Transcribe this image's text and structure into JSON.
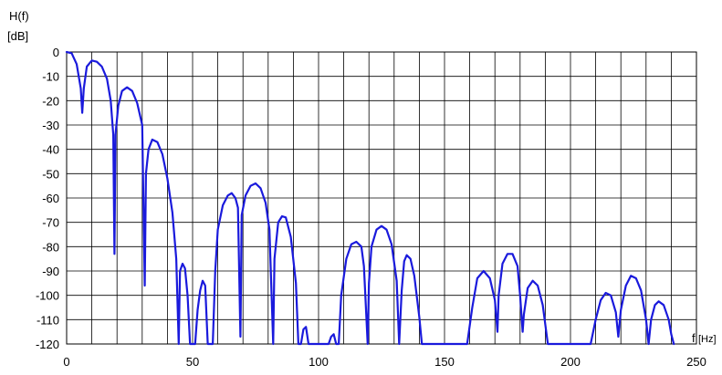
{
  "chart_data": {
    "type": "line",
    "ylabel_line1": "H(f)",
    "ylabel_line2": "[dB]",
    "xlabel_f": "f",
    "xlabel_unit": "[Hz]",
    "xlim": [
      0,
      250
    ],
    "ylim": [
      -120,
      0
    ],
    "xticks": [
      0,
      50,
      100,
      150,
      200,
      250
    ],
    "yticks": [
      0,
      -10,
      -20,
      -30,
      -40,
      -50,
      -60,
      -70,
      -80,
      -90,
      -100,
      -110,
      -120
    ],
    "grid": true,
    "colors": {
      "series": "#1a1adc",
      "grid": "#000000",
      "frame": "#000000"
    },
    "series": [
      {
        "values": [
          [
            0,
            0
          ],
          [
            2,
            -0.5
          ],
          [
            4,
            -5
          ],
          [
            5.6,
            -15
          ],
          [
            6.2,
            -25
          ],
          [
            6.8,
            -15
          ],
          [
            8,
            -6
          ],
          [
            10,
            -3.5
          ],
          [
            12,
            -4
          ],
          [
            14,
            -6
          ],
          [
            16,
            -11
          ],
          [
            17.5,
            -20
          ],
          [
            18.5,
            -34
          ],
          [
            19,
            -83
          ],
          [
            19.4,
            -34
          ],
          [
            20.5,
            -22
          ],
          [
            22,
            -16
          ],
          [
            24,
            -14.5
          ],
          [
            26,
            -16
          ],
          [
            28,
            -21
          ],
          [
            30,
            -30
          ],
          [
            31,
            -96
          ],
          [
            31.5,
            -50
          ],
          [
            32.5,
            -40
          ],
          [
            34,
            -36
          ],
          [
            36,
            -37
          ],
          [
            38,
            -42
          ],
          [
            40,
            -52
          ],
          [
            42,
            -66
          ],
          [
            43.5,
            -85
          ],
          [
            44.5,
            -125
          ],
          [
            45,
            -90
          ],
          [
            46,
            -87
          ],
          [
            47,
            -89
          ],
          [
            48,
            -100
          ],
          [
            49,
            -125
          ],
          [
            51,
            -125
          ],
          [
            52,
            -106
          ],
          [
            53,
            -98
          ],
          [
            54,
            -94
          ],
          [
            55,
            -96
          ],
          [
            56,
            -125
          ],
          [
            58,
            -125
          ],
          [
            59,
            -90
          ],
          [
            60,
            -73
          ],
          [
            62,
            -63
          ],
          [
            64,
            -59
          ],
          [
            65.5,
            -58
          ],
          [
            67,
            -60
          ],
          [
            68,
            -64
          ],
          [
            69,
            -117
          ],
          [
            69.5,
            -67
          ],
          [
            71,
            -59
          ],
          [
            73,
            -55
          ],
          [
            75,
            -54
          ],
          [
            77,
            -56
          ],
          [
            79,
            -62
          ],
          [
            80.5,
            -73
          ],
          [
            82,
            -125
          ],
          [
            82.5,
            -85
          ],
          [
            84,
            -70
          ],
          [
            85.5,
            -67.5
          ],
          [
            87,
            -68
          ],
          [
            89,
            -76
          ],
          [
            91,
            -95
          ],
          [
            92,
            -125
          ],
          [
            93,
            -125
          ],
          [
            94,
            -114
          ],
          [
            95,
            -113
          ],
          [
            96,
            -125
          ],
          [
            104,
            -125
          ],
          [
            105,
            -117
          ],
          [
            106,
            -116
          ],
          [
            107,
            -125
          ],
          [
            108,
            -125
          ],
          [
            109,
            -100
          ],
          [
            111,
            -85
          ],
          [
            113,
            -79
          ],
          [
            115,
            -78
          ],
          [
            117,
            -80
          ],
          [
            118,
            -88
          ],
          [
            119.5,
            -125
          ],
          [
            120,
            -95
          ],
          [
            121,
            -80
          ],
          [
            123,
            -73
          ],
          [
            125,
            -71.5
          ],
          [
            127,
            -73
          ],
          [
            129,
            -79
          ],
          [
            131,
            -94
          ],
          [
            132,
            -125
          ],
          [
            133,
            -98
          ],
          [
            134,
            -86
          ],
          [
            135,
            -83.5
          ],
          [
            136.5,
            -85
          ],
          [
            138,
            -92
          ],
          [
            140,
            -109
          ],
          [
            141,
            -125
          ],
          [
            159,
            -125
          ],
          [
            161,
            -105
          ],
          [
            163,
            -93
          ],
          [
            165.5,
            -90
          ],
          [
            168,
            -93
          ],
          [
            170,
            -102
          ],
          [
            171,
            -115
          ],
          [
            171.5,
            -100
          ],
          [
            173,
            -87
          ],
          [
            175,
            -83
          ],
          [
            177,
            -83
          ],
          [
            179,
            -88
          ],
          [
            180,
            -100
          ],
          [
            181,
            -115
          ],
          [
            181.5,
            -108
          ],
          [
            183,
            -97
          ],
          [
            185,
            -94
          ],
          [
            187,
            -96
          ],
          [
            189,
            -104
          ],
          [
            191,
            -120
          ],
          [
            208,
            -125
          ],
          [
            210,
            -110
          ],
          [
            212,
            -102
          ],
          [
            214,
            -99
          ],
          [
            216,
            -100
          ],
          [
            218,
            -107
          ],
          [
            219,
            -117
          ],
          [
            220,
            -106
          ],
          [
            222,
            -96
          ],
          [
            224,
            -92
          ],
          [
            226,
            -93
          ],
          [
            228,
            -98
          ],
          [
            230,
            -110
          ],
          [
            231,
            -120
          ],
          [
            232,
            -110
          ],
          [
            233.5,
            -104
          ],
          [
            235,
            -102.5
          ],
          [
            237,
            -104
          ],
          [
            239,
            -110
          ],
          [
            240,
            -116
          ],
          [
            241,
            -121
          ]
        ]
      }
    ]
  }
}
